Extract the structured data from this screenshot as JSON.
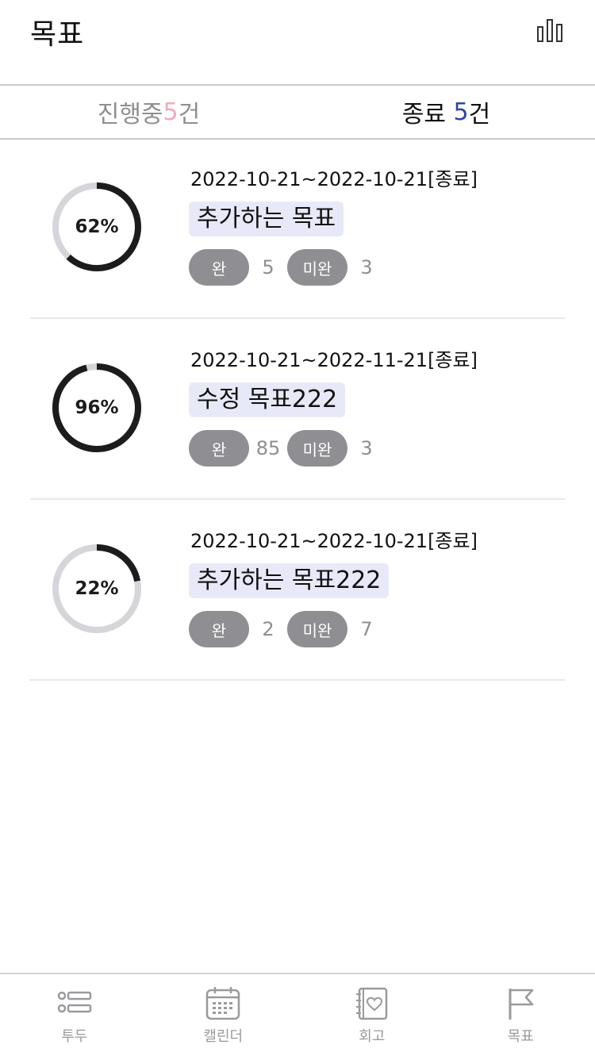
{
  "header": {
    "title": "목표",
    "stats_icon": "bar-chart-icon"
  },
  "tabs": [
    {
      "label": "진행중",
      "count": "5",
      "suffix": "건",
      "active": false
    },
    {
      "label": "종료",
      "count": "5",
      "suffix": "건",
      "active": true
    }
  ],
  "goals": [
    {
      "progress": 62,
      "progress_label": "62%",
      "date_range": "2022-10-21~2022-10-21[종료]",
      "title": "추가하는 목표",
      "done_label": "완",
      "done_count": "5",
      "undone_label": "미완",
      "undone_count": "3"
    },
    {
      "progress": 96,
      "progress_label": "96%",
      "date_range": "2022-10-21~2022-11-21[종료]",
      "title": "수정 목표222",
      "done_label": "완",
      "done_count": "85",
      "undone_label": "미완",
      "undone_count": "3"
    },
    {
      "progress": 22,
      "progress_label": "22%",
      "date_range": "2022-10-21~2022-10-21[종료]",
      "title": "추가하는 목표222",
      "done_label": "완",
      "done_count": "2",
      "undone_label": "미완",
      "undone_count": "7"
    }
  ],
  "bottom_nav": [
    {
      "label": "투두",
      "icon": "todo-list-icon"
    },
    {
      "label": "캘린더",
      "icon": "calendar-icon"
    },
    {
      "label": "회고",
      "icon": "diary-heart-icon"
    },
    {
      "label": "목표",
      "icon": "flag-icon"
    }
  ],
  "colors": {
    "ring_track": "#d6d6da",
    "ring_fill": "#1c1c1e",
    "pill_bg": "#8e8e93",
    "title_highlight": "#e8e9f8",
    "count_progress": "#f2aabb",
    "count_done": "#2b47a8"
  }
}
